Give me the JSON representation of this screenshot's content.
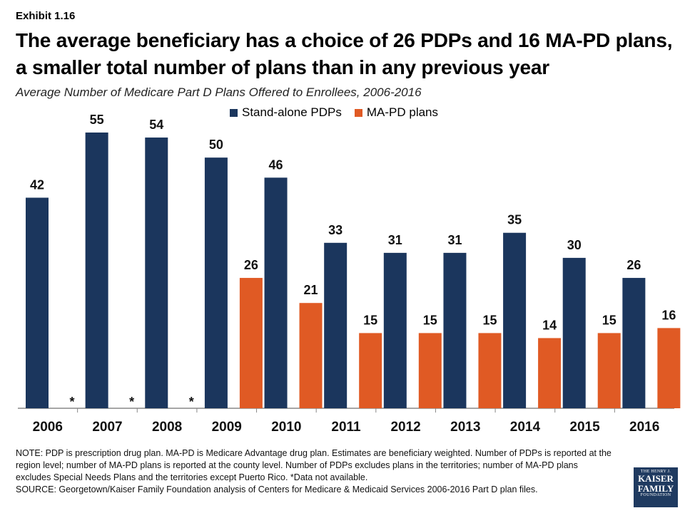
{
  "exhibit": "Exhibit 1.16",
  "title": "The average beneficiary has a choice of 26 PDPs and 16 MA-PD plans, a smaller total number of plans than in any previous year",
  "subtitle": "Average Number of Medicare Part D Plans Offered to Enrollees, 2006-2016",
  "note": "NOTE: PDP is prescription drug plan. MA-PD is Medicare Advantage drug plan. Estimates are beneficiary weighted. Number of PDPs is reported at the region level; number of MA-PD plans is reported at the county level. Number of PDPs excludes plans in the territories; number of MA-PD plans excludes Special Needs Plans and the territories except Puerto Rico. *Data not available.",
  "source": "SOURCE: Georgetown/Kaiser Family Foundation analysis of Centers for Medicare & Medicaid Services 2006-2016 Part D plan files.",
  "logo": {
    "line1": "THE HENRY J.",
    "line2": "KAISER",
    "line3": "FAMILY",
    "line4": "FOUNDATION"
  },
  "chart_data": {
    "type": "bar",
    "categories": [
      "2006",
      "2007",
      "2008",
      "2009",
      "2010",
      "2011",
      "2012",
      "2013",
      "2014",
      "2015",
      "2016"
    ],
    "series": [
      {
        "name": "Stand-alone PDPs",
        "color": "#1b365d",
        "values": [
          42,
          55,
          54,
          50,
          46,
          33,
          31,
          31,
          35,
          30,
          26
        ],
        "labels": [
          "42",
          "55",
          "54",
          "50",
          "46",
          "33",
          "31",
          "31",
          "35",
          "30",
          "26"
        ]
      },
      {
        "name": "MA-PD plans",
        "color": "#e05a24",
        "values": [
          null,
          null,
          null,
          26,
          21,
          15,
          15,
          15,
          14,
          15,
          16
        ],
        "labels": [
          "*",
          "*",
          "*",
          "26",
          "21",
          "15",
          "15",
          "15",
          "14",
          "15",
          "16"
        ]
      }
    ],
    "ylim": [
      0,
      55
    ],
    "grid": false,
    "legend_position": "top-center"
  }
}
